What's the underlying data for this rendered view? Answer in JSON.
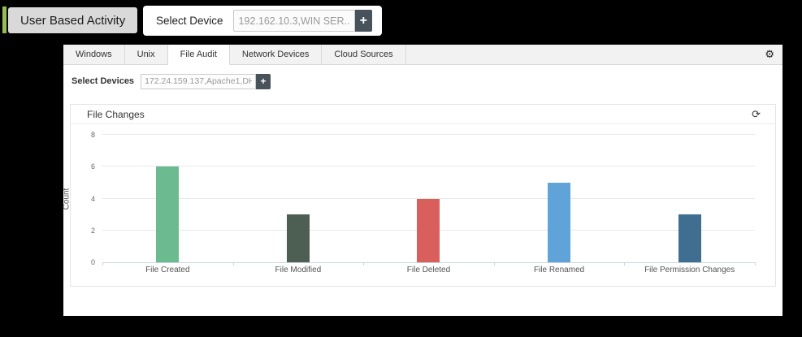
{
  "header": {
    "title": "User Based Activity",
    "select_device_label": "Select Device",
    "select_device_value": "192.162.10.3,WIN SER...",
    "add_button": "+"
  },
  "tabs": [
    {
      "label": "Windows",
      "active": false
    },
    {
      "label": "Unix",
      "active": false
    },
    {
      "label": "File Audit",
      "active": true
    },
    {
      "label": "Network Devices",
      "active": false
    },
    {
      "label": "Cloud Sources",
      "active": false
    }
  ],
  "icons": {
    "gear": "⚙",
    "refresh": "⟳"
  },
  "device_filter": {
    "label": "Select Devices",
    "value": "172.24.159.137,Apache1,DHCP-Wind ...",
    "add_button": "+"
  },
  "panel": {
    "title": "File Changes"
  },
  "chart_data": {
    "type": "bar",
    "title": "File Changes",
    "categories": [
      "File Created",
      "File Modified",
      "File Deleted",
      "File Renamed",
      "File Permission Changes"
    ],
    "values": [
      6,
      3,
      4,
      5,
      3
    ],
    "colors": [
      "#6cba90",
      "#4c5f52",
      "#d95f5c",
      "#5fa3d8",
      "#3f6e90"
    ],
    "xlabel": "",
    "ylabel": "Count",
    "ylim": [
      0,
      8
    ],
    "yticks": [
      0,
      2,
      4,
      6,
      8
    ],
    "grid": true,
    "legend": false
  }
}
